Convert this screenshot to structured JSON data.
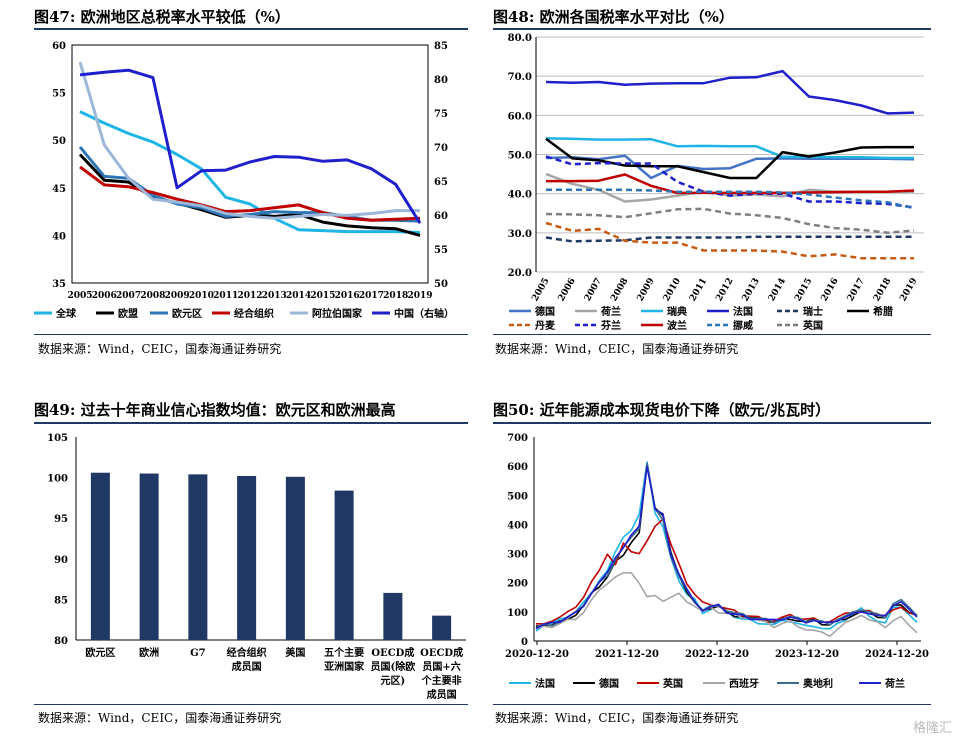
{
  "panels": [
    {
      "title": "图47:  欧洲地区总税率水平较低（%）",
      "source": "数据来源：Wind，CEIC，国泰海通证券研究"
    },
    {
      "title": "图48:  欧洲各国税率水平对比（%）",
      "source": "数据来源：Wind，CEIC，国泰海通证券研究"
    },
    {
      "title": "图49:  过去十年商业信心指数均值：欧元区和欧洲最高",
      "source": "数据来源：Wind，CEIC，国泰海通证券研究"
    },
    {
      "title": "图50:  近年能源成本现货电价下降（欧元/兆瓦时）",
      "source": "数据来源：Wind，CEIC，国泰海通证券研究"
    }
  ],
  "watermark": "格隆汇",
  "chart_data": [
    {
      "type": "line",
      "x": [
        2005,
        2006,
        2007,
        2008,
        2009,
        2010,
        2011,
        2012,
        2013,
        2014,
        2015,
        2016,
        2017,
        2018,
        2019
      ],
      "ylim": [
        35,
        60
      ],
      "yticks": [
        35,
        40,
        45,
        50,
        55,
        60
      ],
      "y2lim": [
        50,
        85
      ],
      "y2ticks": [
        50,
        55,
        60,
        65,
        70,
        75,
        80,
        85
      ],
      "series": [
        {
          "name": "全球",
          "color": "#1fb4e6",
          "axis": "left",
          "values": [
            53.0,
            51.8,
            50.7,
            49.8,
            48.5,
            47.0,
            44.0,
            43.3,
            41.8,
            40.6,
            40.5,
            40.4,
            40.4,
            40.4,
            40.3
          ]
        },
        {
          "name": "欧盟",
          "color": "#000000",
          "axis": "left",
          "values": [
            48.5,
            45.8,
            45.6,
            44.0,
            43.4,
            42.7,
            41.9,
            42.1,
            42.0,
            42.2,
            41.4,
            41.0,
            40.8,
            40.7,
            40.0
          ]
        },
        {
          "name": "欧元区",
          "color": "#2e75b6",
          "axis": "left",
          "values": [
            49.3,
            46.2,
            46.0,
            44.2,
            43.3,
            42.9,
            42.0,
            42.2,
            42.5,
            42.4,
            42.4,
            42.0,
            41.6,
            41.6,
            41.5
          ]
        },
        {
          "name": "经合组织",
          "color": "#c00000",
          "axis": "left",
          "values": [
            47.2,
            45.3,
            45.1,
            44.5,
            43.8,
            43.2,
            42.5,
            42.6,
            42.9,
            43.2,
            42.4,
            41.8,
            41.6,
            41.7,
            41.8
          ]
        },
        {
          "name": "阿拉伯国家",
          "color": "#9db7d9",
          "axis": "left",
          "values": [
            58.2,
            49.5,
            46.0,
            43.8,
            43.5,
            43.1,
            42.3,
            42.0,
            41.8,
            42.0,
            42.2,
            42.1,
            42.3,
            42.6,
            42.6
          ]
        },
        {
          "name": "中国（右轴）",
          "color": "#1f1fcc",
          "axis": "right",
          "values": [
            80.6,
            81.0,
            81.3,
            80.2,
            64.0,
            66.5,
            66.6,
            67.8,
            68.6,
            68.5,
            67.9,
            68.1,
            66.8,
            64.5,
            58.8
          ]
        }
      ]
    },
    {
      "type": "line",
      "x": [
        "2005",
        "2006",
        "2007",
        "2008",
        "2009",
        "2010",
        "2011",
        "2012",
        "2013",
        "2014",
        "2015",
        "2016",
        "2017",
        "2018",
        "2019"
      ],
      "ylim": [
        20,
        80
      ],
      "yticks": [
        "20.0",
        "30.0",
        "40.0",
        "50.0",
        "60.0",
        "70.0",
        "80.0"
      ],
      "series": [
        {
          "name": "德国",
          "color": "#4472c4",
          "dash": "",
          "values": [
            49.1,
            49.3,
            48.8,
            49.7,
            44.0,
            47.1,
            46.3,
            46.5,
            48.9,
            49.0,
            48.9,
            48.9,
            48.9,
            48.9,
            48.8
          ]
        },
        {
          "name": "荷兰",
          "color": "#a6a6a6",
          "dash": "",
          "values": [
            45.0,
            42.5,
            41.0,
            38.0,
            38.5,
            39.5,
            40.5,
            39.5,
            39.8,
            39.3,
            41.0,
            40.5,
            40.5,
            40.5,
            40.5
          ]
        },
        {
          "name": "瑞典",
          "color": "#1fb4e6",
          "dash": "",
          "values": [
            54.1,
            54.0,
            53.8,
            53.8,
            53.9,
            52.1,
            52.2,
            52.1,
            52.1,
            49.4,
            49.4,
            49.3,
            49.3,
            49.1,
            49.1
          ]
        },
        {
          "name": "法国",
          "color": "#1f1fcc",
          "dash": "",
          "values": [
            68.5,
            68.3,
            68.5,
            67.8,
            68.1,
            68.2,
            68.2,
            69.6,
            69.7,
            71.3,
            64.8,
            63.9,
            62.5,
            60.5,
            60.7
          ]
        },
        {
          "name": "瑞士",
          "color": "#1f3864",
          "dash": "6,4",
          "values": [
            28.8,
            27.8,
            28.0,
            28.1,
            28.8,
            28.8,
            28.8,
            28.8,
            29.0,
            29.0,
            29.0,
            29.0,
            29.0,
            29.0,
            29.0
          ]
        },
        {
          "name": "希腊",
          "color": "#000000",
          "dash": "",
          "values": [
            54.0,
            49.0,
            48.5,
            47.2,
            47.0,
            47.0,
            45.5,
            44.0,
            44.0,
            50.6,
            49.5,
            50.5,
            51.8,
            51.9,
            51.9
          ]
        },
        {
          "name": "丹麦",
          "color": "#c55a11",
          "dash": "6,4",
          "values": [
            32.5,
            30.5,
            31.0,
            28.0,
            27.5,
            27.5,
            25.5,
            25.5,
            25.5,
            25.2,
            24.0,
            24.5,
            23.5,
            23.5,
            23.5
          ]
        },
        {
          "name": "芬兰",
          "color": "#1f1fcc",
          "dash": "6,4",
          "values": [
            49.5,
            47.5,
            47.8,
            47.7,
            47.7,
            43.0,
            40.5,
            39.5,
            40.0,
            40.0,
            38.0,
            38.0,
            37.6,
            37.4,
            36.5
          ]
        },
        {
          "name": "波兰",
          "color": "#c00000",
          "dash": "",
          "values": [
            43.2,
            43.2,
            43.3,
            44.9,
            42.0,
            40.2,
            40.2,
            40.2,
            40.2,
            40.2,
            40.3,
            40.4,
            40.5,
            40.5,
            40.8
          ]
        },
        {
          "name": "挪威",
          "color": "#2e75b6",
          "dash": "6,4",
          "values": [
            41.0,
            41.0,
            41.0,
            41.0,
            40.8,
            40.5,
            40.5,
            40.5,
            40.5,
            40.3,
            39.8,
            39.0,
            38.3,
            37.8,
            36.3
          ]
        },
        {
          "name": "英国",
          "color": "#7f7f7f",
          "dash": "6,4",
          "values": [
            34.8,
            34.7,
            34.5,
            34.0,
            35.0,
            36.0,
            36.1,
            34.9,
            34.5,
            33.8,
            32.2,
            31.2,
            30.8,
            30.0,
            30.6
          ]
        }
      ]
    },
    {
      "type": "bar",
      "categories": [
        [
          "欧元区"
        ],
        [
          "欧洲"
        ],
        [
          "G7"
        ],
        [
          "经合组织",
          "成员国"
        ],
        [
          "美国"
        ],
        [
          "五个主要",
          "亚洲国家"
        ],
        [
          "OECD成",
          "员国(除欧",
          "元区)"
        ],
        [
          "OECD成",
          "员国+六",
          "个主要非",
          "成员国"
        ]
      ],
      "values": [
        100.6,
        100.5,
        100.4,
        100.2,
        100.1,
        98.4,
        85.8,
        83.0
      ],
      "color": "#1f3864",
      "ylim": [
        80,
        105
      ],
      "yticks": [
        80,
        85,
        90,
        95,
        100,
        105
      ]
    },
    {
      "type": "line",
      "ylim": [
        0,
        700
      ],
      "yticks": [
        0,
        100,
        200,
        300,
        400,
        500,
        600,
        700
      ],
      "xticks": [
        "2020-12-20",
        "2021-12-20",
        "2022-12-20",
        "2023-12-20",
        "2024-12-20"
      ],
      "x_range": [
        "2020-11",
        "2025-02"
      ],
      "series": [
        {
          "name": "法国",
          "color": "#1fb4e6",
          "values": [
            40,
            55,
            60,
            70,
            85,
            100,
            130,
            170,
            210,
            240,
            300,
            360,
            380,
            430,
            620,
            440,
            390,
            280,
            210,
            160,
            140,
            100,
            110,
            120,
            95,
            85,
            75,
            70,
            65,
            60,
            55,
            65,
            70,
            60,
            50,
            55,
            45,
            40,
            55,
            75,
            95,
            110,
            90,
            70,
            60,
            110,
            120,
            90,
            60
          ]
        },
        {
          "name": "德国",
          "color": "#000000",
          "values": [
            45,
            55,
            55,
            65,
            80,
            90,
            120,
            160,
            190,
            220,
            270,
            300,
            340,
            370,
            600,
            460,
            430,
            300,
            230,
            170,
            130,
            100,
            115,
            120,
            100,
            90,
            85,
            80,
            75,
            70,
            65,
            75,
            80,
            70,
            65,
            70,
            60,
            55,
            70,
            80,
            90,
            100,
            95,
            85,
            80,
            120,
            130,
            100,
            85
          ]
        },
        {
          "name": "英国",
          "color": "#c00000",
          "values": [
            55,
            65,
            70,
            80,
            95,
            120,
            150,
            200,
            250,
            300,
            260,
            330,
            310,
            300,
            340,
            400,
            420,
            330,
            260,
            200,
            160,
            130,
            130,
            120,
            110,
            100,
            90,
            85,
            80,
            75,
            70,
            80,
            85,
            80,
            75,
            75,
            70,
            68,
            80,
            90,
            100,
            105,
            100,
            95,
            90,
            105,
            110,
            100,
            90
          ]
        },
        {
          "name": "西班牙",
          "color": "#a6a6a6",
          "values": [
            40,
            45,
            50,
            60,
            70,
            80,
            100,
            140,
            170,
            200,
            220,
            230,
            240,
            200,
            150,
            150,
            140,
            150,
            160,
            140,
            120,
            100,
            110,
            100,
            95,
            90,
            85,
            80,
            70,
            60,
            50,
            60,
            65,
            55,
            40,
            35,
            25,
            20,
            40,
            60,
            80,
            90,
            70,
            60,
            50,
            70,
            80,
            60,
            30
          ]
        },
        {
          "name": "奥地利",
          "color": "#3a6e8f",
          "values": [
            45,
            55,
            58,
            68,
            82,
            95,
            125,
            165,
            200,
            230,
            280,
            320,
            350,
            390,
            610,
            450,
            420,
            290,
            220,
            170,
            135,
            105,
            118,
            125,
            105,
            95,
            88,
            82,
            78,
            73,
            68,
            78,
            82,
            75,
            70,
            72,
            65,
            62,
            75,
            85,
            95,
            110,
            100,
            90,
            85,
            130,
            140,
            110,
            90
          ]
        },
        {
          "name": "荷兰",
          "color": "#1f1fcc",
          "values": [
            45,
            55,
            58,
            68,
            82,
            95,
            125,
            165,
            200,
            230,
            290,
            320,
            360,
            400,
            600,
            450,
            430,
            300,
            230,
            175,
            140,
            105,
            115,
            120,
            100,
            92,
            86,
            80,
            76,
            72,
            68,
            76,
            82,
            72,
            68,
            72,
            62,
            58,
            72,
            82,
            92,
            105,
            95,
            85,
            82,
            125,
            135,
            105,
            88
          ]
        }
      ]
    }
  ]
}
